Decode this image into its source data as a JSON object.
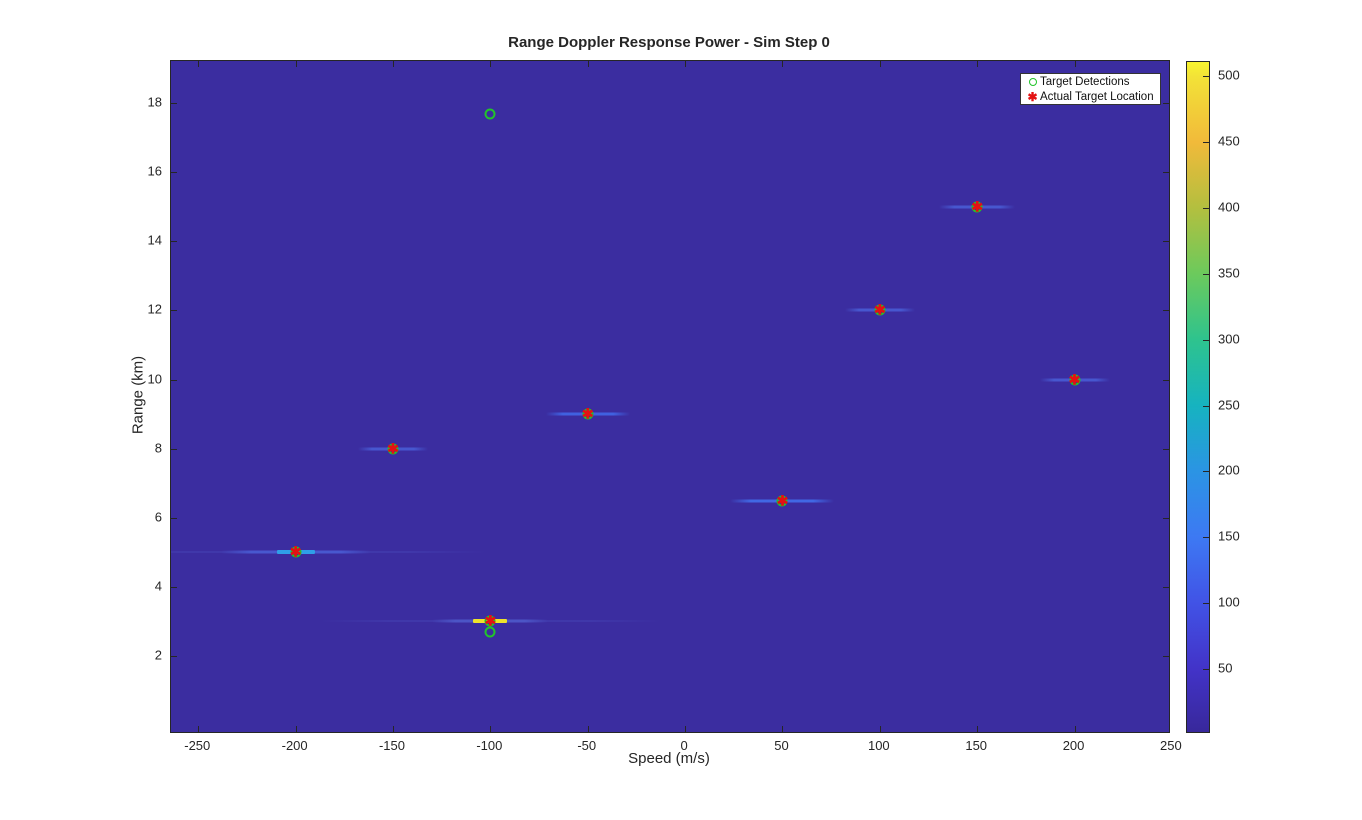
{
  "chart_data": {
    "type": "heatmap",
    "title": "Range Doppler Response Power - Sim Step 0",
    "xlabel": "Speed (m/s)",
    "ylabel": "Range (km)",
    "xlim": [
      -264,
      248.5
    ],
    "ylim": [
      -0.2,
      19.22
    ],
    "xticks": [
      -250,
      -200,
      -150,
      -100,
      -50,
      0,
      50,
      100,
      150,
      200,
      250
    ],
    "yticks": [
      2,
      4,
      6,
      8,
      10,
      12,
      14,
      16,
      18
    ],
    "grid": false,
    "axis_color": "#262626",
    "background_value_color": "#3b2da0",
    "series": [
      {
        "name": "Target Detections",
        "marker": "circle",
        "color": "#22c42a",
        "points": [
          [
            -100,
            17.7
          ],
          [
            150,
            15.0
          ],
          [
            100,
            12.0
          ],
          [
            200,
            10.0
          ],
          [
            -50,
            9.0
          ],
          [
            -150,
            8.0
          ],
          [
            50,
            6.5
          ],
          [
            -200,
            5.0
          ],
          [
            -100,
            3.0
          ],
          [
            -100,
            2.7
          ]
        ]
      },
      {
        "name": "Actual Target Location",
        "marker": "asterisk",
        "glyph": "✱",
        "color": "#e31212",
        "points": [
          [
            150,
            15.0
          ],
          [
            100,
            12.0
          ],
          [
            200,
            10.0
          ],
          [
            -50,
            9.0
          ],
          [
            -150,
            8.0
          ],
          [
            50,
            6.5
          ],
          [
            -200,
            5.0
          ],
          [
            -100,
            3.0
          ]
        ]
      }
    ],
    "doppler_streaks": [
      {
        "x": 150,
        "y": 15.0,
        "mid_w": 76,
        "mid_c": "#4757cf",
        "faint_w": 0,
        "faint_c": "",
        "core_w": 0,
        "core_c": ""
      },
      {
        "x": 100,
        "y": 12.0,
        "mid_w": 70,
        "mid_c": "#4757cf",
        "faint_w": 0,
        "faint_c": "",
        "core_w": 0,
        "core_c": ""
      },
      {
        "x": 200,
        "y": 10.0,
        "mid_w": 70,
        "mid_c": "#4757cf",
        "faint_w": 0,
        "faint_c": "",
        "core_w": 0,
        "core_c": ""
      },
      {
        "x": -50,
        "y": 9.0,
        "mid_w": 84,
        "mid_c": "#4061e0",
        "faint_w": 0,
        "faint_c": "",
        "core_w": 0,
        "core_c": ""
      },
      {
        "x": -150,
        "y": 8.0,
        "mid_w": 70,
        "mid_c": "#4757cf",
        "faint_w": 0,
        "faint_c": "",
        "core_w": 0,
        "core_c": ""
      },
      {
        "x": 50,
        "y": 6.5,
        "mid_w": 104,
        "mid_c": "#4168e4",
        "faint_w": 0,
        "faint_c": "",
        "core_w": 0,
        "core_c": ""
      },
      {
        "x": -200,
        "y": 5.0,
        "mid_w": 150,
        "mid_c": "#4858cf",
        "faint_w": 380,
        "faint_c": "#4440b2",
        "core_w": 38,
        "core_c": "#2f9fe8"
      },
      {
        "x": -100,
        "y": 3.0,
        "mid_w": 116,
        "mid_c": "#4c55c6",
        "faint_w": 340,
        "faint_c": "#4440b2",
        "core_w": 34,
        "core_c": "#eee32c"
      }
    ],
    "colorbar": {
      "min": 2,
      "max": 511,
      "ticks": [
        50,
        100,
        150,
        200,
        250,
        300,
        350,
        400,
        450,
        500
      ],
      "stops": [
        {
          "v": 2,
          "c": "#38289b"
        },
        {
          "v": 50,
          "c": "#4233c8"
        },
        {
          "v": 100,
          "c": "#4153e6"
        },
        {
          "v": 150,
          "c": "#3d79f3"
        },
        {
          "v": 200,
          "c": "#2b94e4"
        },
        {
          "v": 250,
          "c": "#16b3c0"
        },
        {
          "v": 300,
          "c": "#2ec38e"
        },
        {
          "v": 350,
          "c": "#6cca5c"
        },
        {
          "v": 400,
          "c": "#b3bf3f"
        },
        {
          "v": 450,
          "c": "#f1ba3a"
        },
        {
          "v": 500,
          "c": "#f3e237"
        },
        {
          "v": 511,
          "c": "#f8f52f"
        }
      ]
    },
    "legend": {
      "position": "top-right",
      "entries": [
        {
          "label": "Target Detections",
          "marker": "circle",
          "color": "#22c42a"
        },
        {
          "label": "Actual Target Location",
          "marker": "asterisk",
          "glyph": "✱",
          "color": "#e31212"
        }
      ]
    }
  }
}
